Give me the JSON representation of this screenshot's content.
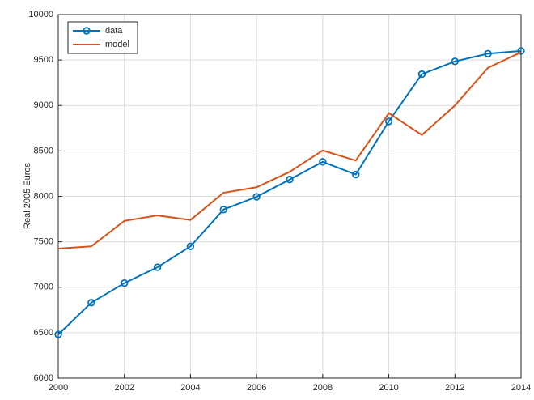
{
  "chart_data": {
    "type": "line",
    "ylabel": "Real 2005 Euros",
    "x": [
      2000,
      2001,
      2002,
      2003,
      2004,
      2005,
      2006,
      2007,
      2008,
      2009,
      2010,
      2011,
      2012,
      2013,
      2014
    ],
    "series": [
      {
        "name": "data",
        "color": "#0072bd",
        "marker": "circle",
        "values": [
          6480,
          6830,
          7045,
          7220,
          7450,
          7855,
          7995,
          8185,
          8380,
          8240,
          8825,
          9345,
          9485,
          9570,
          9600
        ]
      },
      {
        "name": "model",
        "color": "#d95319",
        "values": [
          7425,
          7450,
          7730,
          7790,
          7740,
          8040,
          8100,
          8270,
          8505,
          8395,
          8915,
          8675,
          9000,
          9415,
          9585
        ]
      }
    ],
    "xlim": [
      2000,
      2014
    ],
    "xticks": [
      2000,
      2002,
      2004,
      2006,
      2008,
      2010,
      2012,
      2014
    ],
    "ylim": [
      6000,
      10000
    ],
    "yticks": [
      6000,
      6500,
      7000,
      7500,
      8000,
      8500,
      9000,
      9500,
      10000
    ],
    "grid": true,
    "legend": "northwest"
  }
}
